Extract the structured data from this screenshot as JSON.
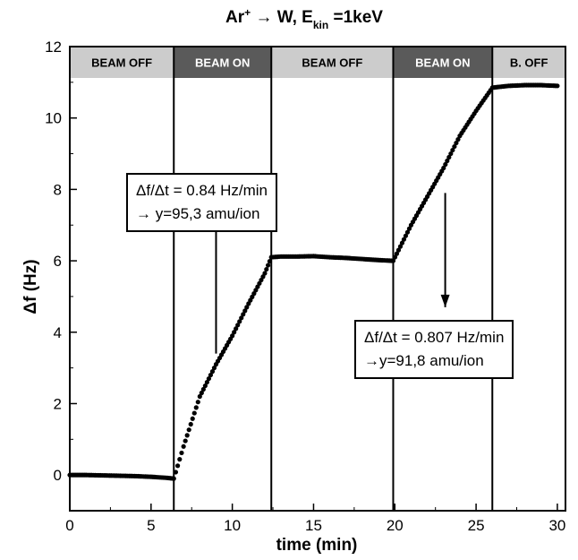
{
  "chart_data": {
    "type": "scatter",
    "title": {
      "main": "Ar",
      "sup": "+",
      "mid": " → W, E",
      "sub": "kin",
      "end": " =1keV"
    },
    "xlabel": "time (min)",
    "ylabel": "Δf (Hz)",
    "xlim": [
      0,
      30.5
    ],
    "ylim": [
      -1,
      12
    ],
    "x_ticks": [
      0,
      5,
      10,
      15,
      20,
      25,
      30
    ],
    "y_ticks": [
      0,
      2,
      4,
      6,
      8,
      10,
      12
    ],
    "beam_bands": [
      {
        "label": "BEAM OFF",
        "from": 0,
        "to": 6.4,
        "state": "off"
      },
      {
        "label": "BEAM ON",
        "from": 6.4,
        "to": 12.4,
        "state": "on"
      },
      {
        "label": "BEAM OFF",
        "from": 12.4,
        "to": 19.9,
        "state": "off"
      },
      {
        "label": "BEAM ON",
        "from": 19.9,
        "to": 26.0,
        "state": "on"
      },
      {
        "label": "B. OFF",
        "from": 26.0,
        "to": 30.5,
        "state": "off"
      }
    ],
    "series": [
      {
        "x": [
          0,
          1,
          2,
          3,
          4,
          5,
          6,
          6.4,
          7,
          8,
          9,
          10,
          11,
          12,
          12.4,
          13,
          14,
          15,
          16,
          17,
          18,
          19,
          19.9,
          21,
          22,
          23,
          24,
          25,
          26,
          27,
          28,
          29,
          30
        ],
        "y": [
          0.0,
          0.0,
          -0.01,
          -0.02,
          -0.03,
          -0.05,
          -0.08,
          -0.1,
          0.8,
          2.2,
          3.1,
          3.9,
          4.8,
          5.65,
          6.1,
          6.12,
          6.12,
          6.13,
          6.1,
          6.08,
          6.05,
          6.02,
          6.0,
          7.0,
          7.8,
          8.6,
          9.5,
          10.2,
          10.85,
          10.9,
          10.92,
          10.92,
          10.9
        ]
      }
    ],
    "annotations": [
      {
        "lines": [
          "Δf/Δt = 0.84 Hz/min",
          "→ y=95,3 amu/ion"
        ],
        "arrow_x": 9.0,
        "arrow_from_y": 3.4,
        "arrow_to_y": 7.5,
        "direction": "up"
      },
      {
        "lines": [
          "Δf/Δt = 0.807 Hz/min",
          "→y=91,8 amu/ion"
        ],
        "arrow_x": 23.1,
        "arrow_from_y": 7.9,
        "arrow_to_y": 4.7,
        "direction": "down"
      }
    ],
    "colors": {
      "band_off": "#cccccc",
      "band_on": "#5a5a5a",
      "text_off": "#000000",
      "text_on": "#ffffff",
      "marker": "#000000"
    }
  }
}
